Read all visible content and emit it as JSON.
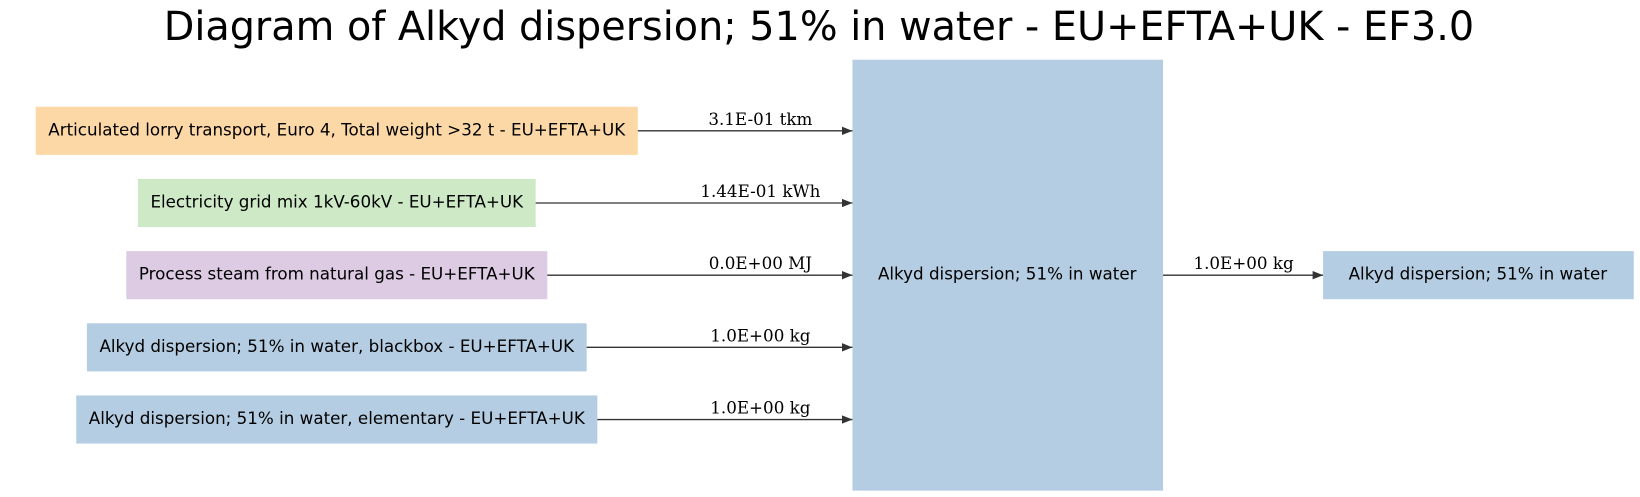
{
  "title": "Diagram of Alkyd dispersion; 51% in water - EU+EFTA+UK - EF3.0",
  "inputs": [
    {
      "label": "Articulated lorry transport, Euro 4, Total weight >32 t - EU+EFTA+UK",
      "flow": "3.1E-01 tkm",
      "color": "#fdd8a7"
    },
    {
      "label": "Electricity grid mix 1kV-60kV - EU+EFTA+UK",
      "flow": "1.44E-01 kWh",
      "color": "#cde9c6"
    },
    {
      "label": "Process steam from natural gas - EU+EFTA+UK",
      "flow": "0.0E+00 MJ",
      "color": "#dccbe3"
    },
    {
      "label": "Alkyd dispersion; 51% in water, blackbox - EU+EFTA+UK",
      "flow": "1.0E+00 kg",
      "color": "#b4cde2"
    },
    {
      "label": "Alkyd dispersion; 51% in water, elementary - EU+EFTA+UK",
      "flow": "1.0E+00 kg",
      "color": "#b4cde2"
    }
  ],
  "process": {
    "label": "Alkyd dispersion; 51% in water",
    "color": "#b4cde2"
  },
  "output": {
    "label": "Alkyd dispersion; 51% in water",
    "flow": "1.0E+00 kg",
    "color": "#b4cde2"
  }
}
